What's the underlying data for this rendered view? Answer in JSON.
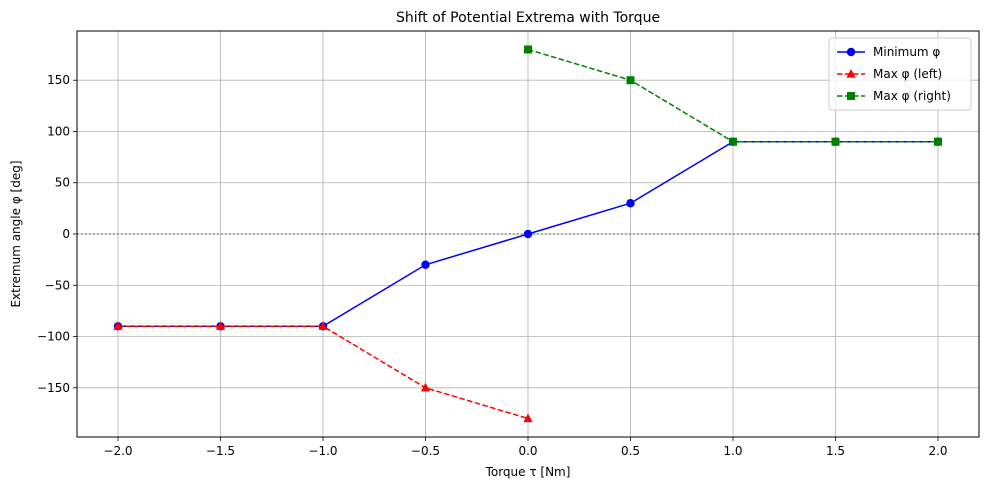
{
  "chart_data": {
    "type": "line",
    "title": "Shift of Potential Extrema with Torque",
    "xlabel": "Torque τ [Nm]",
    "ylabel": "Extremum angle φ [deg]",
    "xlim": [
      -2.2,
      2.2
    ],
    "ylim": [
      -198,
      198
    ],
    "xticks": [
      -2.0,
      -1.5,
      -1.0,
      -0.5,
      0.0,
      0.5,
      1.0,
      1.5,
      2.0
    ],
    "xtick_labels": [
      "−2.0",
      "−1.5",
      "−1.0",
      "−0.5",
      "0.0",
      "0.5",
      "1.0",
      "1.5",
      "2.0"
    ],
    "yticks": [
      -150,
      -100,
      -50,
      0,
      50,
      100,
      150
    ],
    "ytick_labels": [
      "−150",
      "−100",
      "−50",
      "0",
      "50",
      "100",
      "150"
    ],
    "grid": true,
    "reference_line": {
      "y": 0,
      "style": "dotted",
      "color": "#808080"
    },
    "legend_position": "top-right",
    "series": [
      {
        "name": "Minimum φ",
        "color": "#0000ff",
        "marker": "circle",
        "linestyle": "solid",
        "x": [
          -2.0,
          -1.5,
          -1.0,
          -0.5,
          0.0,
          0.5,
          1.0,
          1.5,
          2.0
        ],
        "y": [
          -90,
          -90,
          -90,
          -30,
          0,
          30,
          90,
          90,
          90
        ]
      },
      {
        "name": "Max φ (left)",
        "color": "#ff0000",
        "marker": "triangle",
        "linestyle": "dashed",
        "x": [
          -2.0,
          -1.5,
          -1.0,
          -0.5,
          0.0
        ],
        "y": [
          -90,
          -90,
          -90,
          -150,
          -180
        ]
      },
      {
        "name": "Max φ (right)",
        "color": "#008000",
        "marker": "square",
        "linestyle": "dashed",
        "x": [
          0.0,
          0.5,
          1.0,
          1.5,
          2.0
        ],
        "y": [
          180,
          150,
          90,
          90,
          90
        ]
      }
    ]
  }
}
